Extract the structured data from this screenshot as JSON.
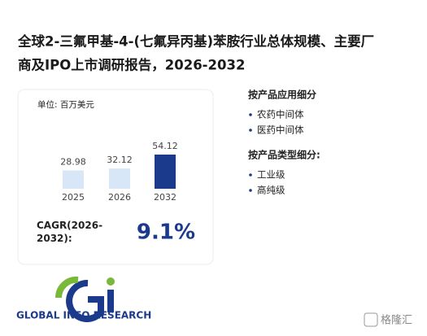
{
  "title_lines": [
    "全球2-三氟甲基-4-(七氟异丙基)苯胺行业总体规模、主要厂",
    "商及IPO上市调研报告，2026-2032"
  ],
  "chart_data": {
    "type": "bar",
    "unit": "单位: 百万美元",
    "categories": [
      "2025",
      "2026",
      "2032"
    ],
    "values": [
      28.98,
      32.12,
      54.12
    ],
    "colors": [
      "#d7e7f8",
      "#d7e7f8",
      "#1c3a8c"
    ]
  },
  "cagr": {
    "label": "CAGR(2026-2032):",
    "value": "9.1%"
  },
  "segments": [
    {
      "heading": "按产品应用细分",
      "items": [
        "农药中间体",
        "医药中间体"
      ]
    },
    {
      "heading": "按产品类型细分:",
      "items": [
        "工业级",
        "高纯级"
      ]
    }
  ],
  "logo_text": "GLOBAL INFO RESEARCH",
  "watermark": "格隆汇"
}
